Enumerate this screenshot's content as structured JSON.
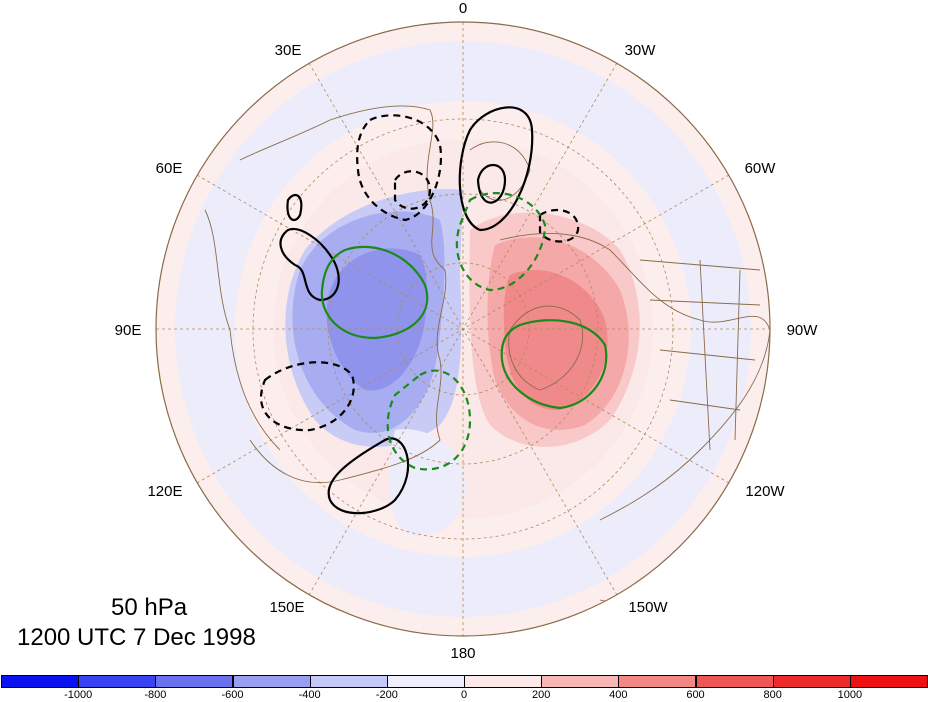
{
  "map": {
    "projection": "north-polar-stereographic",
    "longitude_labels": [
      "0",
      "30W",
      "60W",
      "90W",
      "120W",
      "150W",
      "180",
      "150E",
      "120E",
      "90E",
      "60E",
      "30E"
    ],
    "colors": {
      "ocean_outline": "#8b6b4a",
      "graticule": "#b08a60",
      "contour_positive": "#000000",
      "contour_green": "#1a8a1a"
    }
  },
  "title": {
    "level": "50 hPa",
    "timestamp": "1200 UTC 7 Dec 1998"
  },
  "colorbar": {
    "tick_labels": [
      "-1000",
      "-800",
      "-600",
      "-400",
      "-200",
      "0",
      "200",
      "400",
      "600",
      "800",
      "1000"
    ],
    "colors": [
      "#0a12f2",
      "#3a43f2",
      "#6a70f0",
      "#9a9ef2",
      "#c6c8f8",
      "#eeeefc",
      "#fde9e9",
      "#f8b6b6",
      "#f48686",
      "#f05656",
      "#ec2a2a",
      "#ee1111"
    ]
  }
}
